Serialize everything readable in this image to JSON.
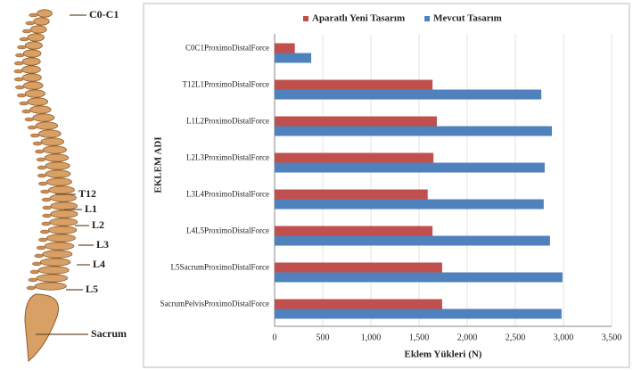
{
  "spine_labels": [
    "C0-C1",
    "T12",
    "L1",
    "L2",
    "L3",
    "L4",
    "L5",
    "Sacrum"
  ],
  "chart_data": {
    "type": "bar",
    "orientation": "horizontal",
    "categories": [
      "C0C1ProximoDistalForce",
      "T12L1ProximoDistalForce",
      "L1L2ProximoDistalForce",
      "L2L3ProximoDistalForce",
      "L3L4ProximoDistalForce",
      "L4L5ProximoDistalForce",
      "L5SacrumProximoDistalForce",
      "SacrumPelvisProximoDistalForce"
    ],
    "series": [
      {
        "name": "Aparatlı Yeni Tasarım",
        "color": "#c0504d",
        "values": [
          210,
          1640,
          1685,
          1650,
          1590,
          1640,
          1740,
          1740
        ]
      },
      {
        "name": "Mevcut Tasarım",
        "color": "#4f81bd",
        "values": [
          380,
          2770,
          2880,
          2805,
          2795,
          2860,
          2990,
          2980
        ]
      }
    ],
    "xlabel": "Eklem Yükleri (N)",
    "ylabel": "EKLEM ADI",
    "xlim": [
      0,
      3500
    ],
    "xticks": [
      0,
      500,
      {
        "value": 1000,
        "label": "1,000"
      },
      {
        "value": 1500,
        "label": "1,500"
      },
      {
        "value": 2000,
        "label": "2,000"
      },
      {
        "value": 2500,
        "label": "2,500"
      },
      {
        "value": 3000,
        "label": "3,000"
      },
      {
        "value": 3500,
        "label": "3,500"
      }
    ],
    "grid": true,
    "legend": "top"
  }
}
